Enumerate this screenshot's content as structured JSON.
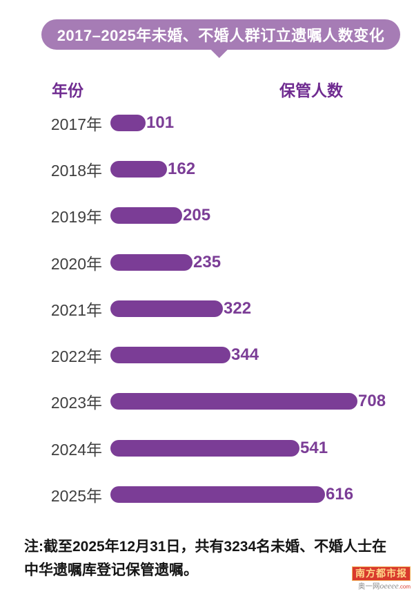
{
  "title": "2017–2025年未婚、不婚人群订立遗嘱人数变化",
  "columns": {
    "year": "年份",
    "count": "保管人数"
  },
  "chart_data": {
    "type": "bar",
    "orientation": "horizontal",
    "title": "2017–2025年未婚、不婚人群订立遗嘱人数变化",
    "xlabel": "保管人数",
    "ylabel": "年份",
    "categories": [
      "2017年",
      "2018年",
      "2019年",
      "2020年",
      "2021年",
      "2022年",
      "2023年",
      "2024年",
      "2025年"
    ],
    "values": [
      101,
      162,
      205,
      235,
      322,
      344,
      708,
      541,
      616
    ],
    "xlim": [
      0,
      708
    ],
    "grid": false,
    "legend": false,
    "data_labels": true
  },
  "note": {
    "line1": "注:截至2025年12月31日，共有3234名未婚、不婚人士在",
    "line2": "中华遗嘱库登记保管遗嘱。"
  },
  "logo": {
    "name": "南方都市报",
    "sub_prefix": "奥一网",
    "sub_italic": "oeeee",
    "sub_suffix": ".com"
  },
  "colors": {
    "banner_bg": "#a67cb5",
    "bar": "#7b3d96",
    "value_text": "#7b3d96",
    "header_text": "#6f2b90",
    "year_text": "#3f3f3f",
    "logo_red": "#d93a2d",
    "logo_gold": "#ffd98a"
  }
}
